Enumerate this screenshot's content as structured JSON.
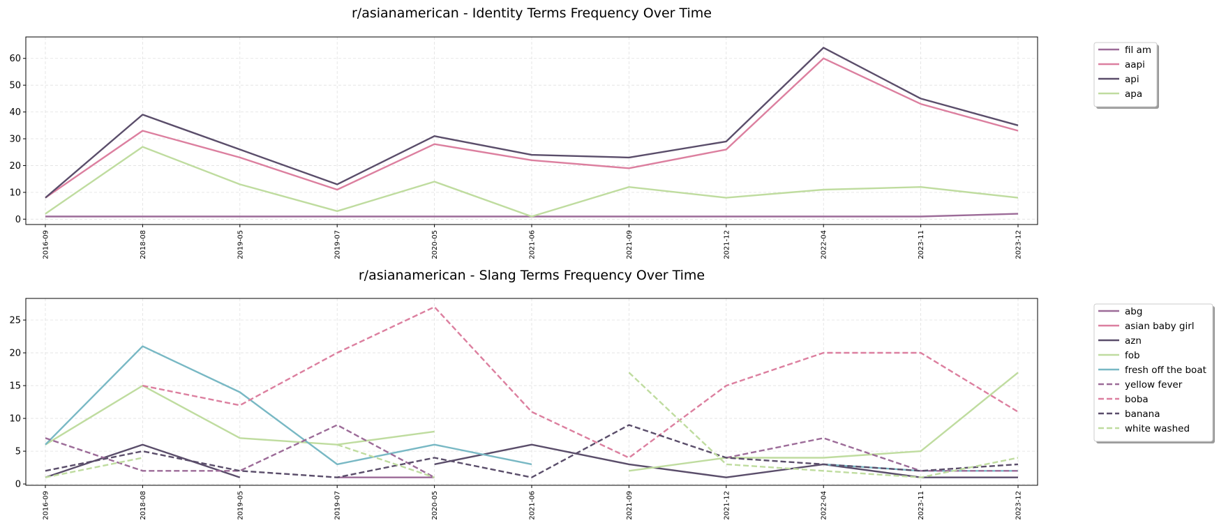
{
  "chart_data": [
    {
      "type": "line",
      "title": "r/asianamerican - Identity Terms Frequency Over Time",
      "xlabel": "",
      "ylabel": "",
      "ylim": [
        -2,
        68
      ],
      "yticks": [
        0,
        10,
        20,
        30,
        40,
        50,
        60
      ],
      "grid": true,
      "legend_position": "outside-right-top",
      "categories": [
        "2016-09",
        "2018-08",
        "2019-05",
        "2019-07",
        "2020-05",
        "2021-06",
        "2021-09",
        "2021-12",
        "2022-04",
        "2023-11",
        "2023-12"
      ],
      "series": [
        {
          "name": "fil am",
          "color": "#9c6b98",
          "dash": "solid",
          "values": [
            1,
            1,
            1,
            1,
            1,
            1,
            1,
            1,
            1,
            1,
            2
          ]
        },
        {
          "name": "aapi",
          "color": "#dc7f9f",
          "dash": "solid",
          "values": [
            8,
            33,
            23,
            11,
            28,
            22,
            19,
            26,
            60,
            43,
            33
          ]
        },
        {
          "name": "api",
          "color": "#5a4d6a",
          "dash": "solid",
          "values": [
            8,
            39,
            26,
            13,
            31,
            24,
            23,
            29,
            64,
            45,
            35
          ]
        },
        {
          "name": "apa",
          "color": "#bfdc9f",
          "dash": "solid",
          "values": [
            2,
            27,
            13,
            3,
            14,
            1,
            12,
            8,
            11,
            12,
            8
          ]
        }
      ]
    },
    {
      "type": "line",
      "title": "r/asianamerican - Slang Terms Frequency Over Time",
      "xlabel": "",
      "ylabel": "",
      "ylim": [
        -0.2,
        28.3
      ],
      "yticks": [
        0,
        5,
        10,
        15,
        20,
        25
      ],
      "grid": true,
      "legend_position": "outside-right-top",
      "categories": [
        "2016-09",
        "2018-08",
        "2019-05",
        "2019-07",
        "2020-05",
        "2021-06",
        "2021-09",
        "2021-12",
        "2022-04",
        "2023-11",
        "2023-12"
      ],
      "series": [
        {
          "name": "abg",
          "color": "#9c6b98",
          "dash": "solid",
          "values": [
            null,
            null,
            null,
            1,
            1,
            null,
            null,
            null,
            null,
            null,
            null
          ]
        },
        {
          "name": "asian baby girl",
          "color": "#dc7f9f",
          "dash": "solid",
          "values": [
            null,
            null,
            null,
            null,
            null,
            null,
            null,
            null,
            null,
            null,
            null
          ]
        },
        {
          "name": "azn",
          "color": "#5a4d6a",
          "dash": "solid",
          "values": [
            1,
            6,
            1,
            null,
            3,
            6,
            3,
            1,
            3,
            1,
            1
          ]
        },
        {
          "name": "fob",
          "color": "#bfdc9f",
          "dash": "solid",
          "values": [
            6,
            15,
            7,
            6,
            8,
            null,
            2,
            4,
            4,
            5,
            17
          ]
        },
        {
          "name": "fresh off the boat",
          "color": "#78b8c4",
          "dash": "solid",
          "values": [
            6,
            21,
            14,
            3,
            6,
            3,
            null,
            null,
            3,
            2,
            2
          ]
        },
        {
          "name": "yellow fever",
          "color": "#9c6b98",
          "dash": "dashed",
          "values": [
            7,
            2,
            2,
            9,
            1,
            null,
            null,
            4,
            7,
            2,
            2
          ]
        },
        {
          "name": "boba",
          "color": "#dc7f9f",
          "dash": "dashed",
          "values": [
            null,
            15,
            12,
            20,
            27,
            11,
            4,
            15,
            20,
            20,
            11
          ]
        },
        {
          "name": "banana",
          "color": "#5a4d6a",
          "dash": "dashed",
          "values": [
            2,
            5,
            2,
            1,
            4,
            1,
            9,
            4,
            3,
            2,
            3
          ]
        },
        {
          "name": "white washed",
          "color": "#bfdc9f",
          "dash": "dashed",
          "values": [
            1,
            4,
            null,
            6,
            1,
            null,
            17,
            3,
            2,
            1,
            4
          ]
        }
      ]
    }
  ]
}
